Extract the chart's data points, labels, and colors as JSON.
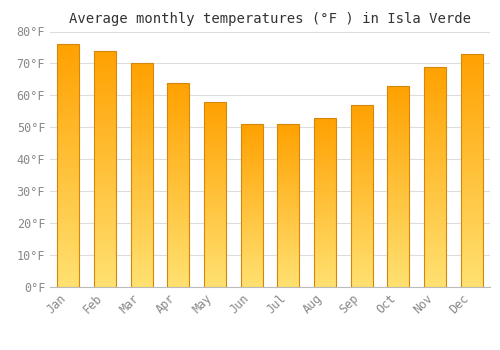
{
  "title": "Average monthly temperatures (°F ) in Isla Verde",
  "months": [
    "Jan",
    "Feb",
    "Mar",
    "Apr",
    "May",
    "Jun",
    "Jul",
    "Aug",
    "Sep",
    "Oct",
    "Nov",
    "Dec"
  ],
  "values": [
    76,
    74,
    70,
    64,
    58,
    51,
    51,
    53,
    57,
    63,
    69,
    73
  ],
  "bar_color_top": "#FFA500",
  "bar_color_bottom": "#FFD966",
  "ylim": [
    0,
    80
  ],
  "yticks": [
    0,
    10,
    20,
    30,
    40,
    50,
    60,
    70,
    80
  ],
  "ytick_labels": [
    "0°F",
    "10°F",
    "20°F",
    "30°F",
    "40°F",
    "50°F",
    "60°F",
    "70°F",
    "80°F"
  ],
  "background_color": "#FFFFFF",
  "grid_color": "#DDDDDD",
  "title_fontsize": 10,
  "tick_fontsize": 8.5,
  "tick_color": "#888888",
  "bar_edge_color": "#D4880A",
  "font_family": "monospace",
  "bar_width": 0.6
}
